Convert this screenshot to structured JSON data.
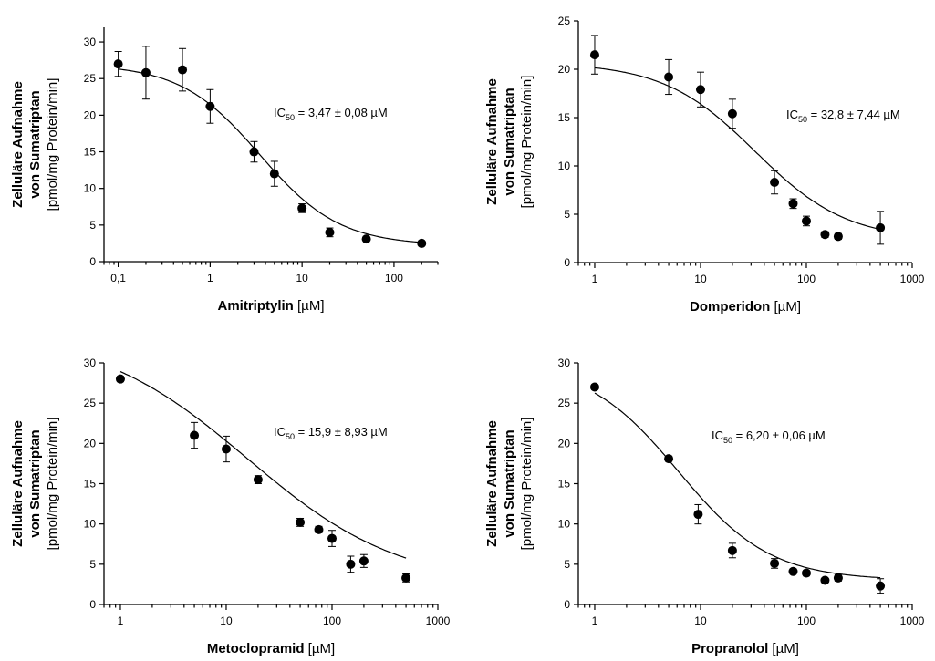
{
  "chart_data": [
    {
      "type": "scatter",
      "xscale": "log",
      "xlim": [
        0.07,
        300
      ],
      "ylim": [
        0,
        32
      ],
      "xticks": [
        0.1,
        1,
        10,
        100
      ],
      "xtick_labels": [
        "0,1",
        "1",
        "10",
        "100"
      ],
      "yticks": [
        0,
        5,
        10,
        15,
        20,
        25,
        30
      ],
      "ytick_labels": [
        "0",
        "5",
        "10",
        "15",
        "20",
        "25",
        "30"
      ],
      "xlabel_bold": "Amitriptylin",
      "xlabel_unit": " [µM]",
      "ylabel_lines": [
        "Zelluläre Aufnahme",
        "von Sumatriptan",
        "[pmol/mg Protein/min]"
      ],
      "annotation": {
        "prefix": "IC",
        "sub": "50",
        "text": " = 3,47 ± 0,08 µM"
      },
      "fit": {
        "top": 27.0,
        "bottom": 2.2,
        "ic50": 3.47
      },
      "points": [
        {
          "x": 0.1,
          "y": 27.0,
          "err": 1.7
        },
        {
          "x": 0.2,
          "y": 25.8,
          "err": 3.6
        },
        {
          "x": 0.5,
          "y": 26.2,
          "err": 2.9
        },
        {
          "x": 1,
          "y": 21.2,
          "err": 2.3
        },
        {
          "x": 3,
          "y": 15.0,
          "err": 1.4
        },
        {
          "x": 5,
          "y": 12.0,
          "err": 1.7
        },
        {
          "x": 10,
          "y": 7.3,
          "err": 0.6
        },
        {
          "x": 20,
          "y": 4.0,
          "err": 0.6
        },
        {
          "x": 50,
          "y": 3.1,
          "err": 0.2
        },
        {
          "x": 200,
          "y": 2.5,
          "err": 0.2
        }
      ]
    },
    {
      "type": "scatter",
      "xscale": "log",
      "xlim": [
        0.7,
        1000
      ],
      "ylim": [
        0,
        25
      ],
      "xticks": [
        1,
        10,
        100,
        1000
      ],
      "xtick_labels": [
        "1",
        "10",
        "100",
        "1000"
      ],
      "yticks": [
        0,
        5,
        10,
        15,
        20,
        25
      ],
      "ytick_labels": [
        "0",
        "5",
        "10",
        "15",
        "20",
        "25"
      ],
      "xlabel_bold": "Domperidon",
      "xlabel_unit": " [µM]",
      "ylabel_lines": [
        "Zelluläre Aufnahme",
        "von Sumatriptan",
        "[pmol/mg Protein/min]"
      ],
      "annotation": {
        "prefix": "IC",
        "sub": "50",
        "text": " = 32,8 ± 7,44 µM"
      },
      "fit": {
        "top": 20.7,
        "bottom": 2.3,
        "ic50": 32.8
      },
      "points": [
        {
          "x": 1,
          "y": 21.5,
          "err": 2.0
        },
        {
          "x": 5,
          "y": 19.2,
          "err": 1.8
        },
        {
          "x": 10,
          "y": 17.9,
          "err": 1.8
        },
        {
          "x": 20,
          "y": 15.4,
          "err": 1.5
        },
        {
          "x": 50,
          "y": 8.3,
          "err": 1.2
        },
        {
          "x": 75,
          "y": 6.1,
          "err": 0.5
        },
        {
          "x": 100,
          "y": 4.3,
          "err": 0.5
        },
        {
          "x": 150,
          "y": 2.9,
          "err": 0.3
        },
        {
          "x": 200,
          "y": 2.7,
          "err": 0.3
        },
        {
          "x": 500,
          "y": 3.6,
          "err": 1.7
        }
      ]
    },
    {
      "type": "scatter",
      "xscale": "log",
      "xlim": [
        0.7,
        1000
      ],
      "ylim": [
        0,
        30
      ],
      "xticks": [
        1,
        10,
        100,
        1000
      ],
      "xtick_labels": [
        "1",
        "10",
        "100",
        "1000"
      ],
      "yticks": [
        0,
        5,
        10,
        15,
        20,
        25,
        30
      ],
      "ytick_labels": [
        "0",
        "5",
        "10",
        "15",
        "20",
        "25",
        "30"
      ],
      "xlabel_bold": "Metoclopramid",
      "xlabel_unit": " [µM]",
      "ylabel_lines": [
        "Zelluläre Aufnahme",
        "von Sumatriptan",
        "[pmol/mg Protein/min]"
      ],
      "annotation": {
        "prefix": "IC",
        "sub": "50",
        "text": " = 15,9 ± 8,93 µM"
      },
      "fit": {
        "top": 34.0,
        "bottom": 2.2,
        "ic50": 15.9,
        "slope": 0.6
      },
      "points": [
        {
          "x": 1,
          "y": 28.0,
          "err": 0.3
        },
        {
          "x": 5,
          "y": 21.0,
          "err": 1.6
        },
        {
          "x": 10,
          "y": 19.3,
          "err": 1.6
        },
        {
          "x": 20,
          "y": 15.5,
          "err": 0.5
        },
        {
          "x": 50,
          "y": 10.2,
          "err": 0.5
        },
        {
          "x": 75,
          "y": 9.3,
          "err": 0.4
        },
        {
          "x": 100,
          "y": 8.2,
          "err": 1.0
        },
        {
          "x": 150,
          "y": 5.0,
          "err": 1.0
        },
        {
          "x": 200,
          "y": 5.4,
          "err": 0.8
        },
        {
          "x": 500,
          "y": 3.3,
          "err": 0.5
        }
      ]
    },
    {
      "type": "scatter",
      "xscale": "log",
      "xlim": [
        0.7,
        1000
      ],
      "ylim": [
        0,
        30
      ],
      "xticks": [
        1,
        10,
        100,
        1000
      ],
      "xtick_labels": [
        "1",
        "10",
        "100",
        "1000"
      ],
      "yticks": [
        0,
        5,
        10,
        15,
        20,
        25,
        30
      ],
      "ytick_labels": [
        "0",
        "5",
        "10",
        "15",
        "20",
        "25",
        "30"
      ],
      "xlabel_bold": "Propranolol",
      "xlabel_unit": " [µM]",
      "ylabel_lines": [
        "Zelluläre Aufnahme",
        "von Sumatriptan",
        "[pmol/mg Protein/min]"
      ],
      "annotation": {
        "prefix": "IC",
        "sub": "50",
        "text": " = 6,20 ± 0,06 µM"
      },
      "fit": {
        "top": 30.0,
        "bottom": 3.0,
        "ic50": 6.2
      },
      "points": [
        {
          "x": 1,
          "y": 27.0,
          "err": 0.3
        },
        {
          "x": 5,
          "y": 18.1,
          "err": 0.3
        },
        {
          "x": 9.5,
          "y": 11.2,
          "err": 1.2
        },
        {
          "x": 20,
          "y": 6.7,
          "err": 0.9
        },
        {
          "x": 50,
          "y": 5.1,
          "err": 0.6
        },
        {
          "x": 75,
          "y": 4.1,
          "err": 0.3
        },
        {
          "x": 100,
          "y": 3.9,
          "err": 0.3
        },
        {
          "x": 150,
          "y": 3.0,
          "err": 0.2
        },
        {
          "x": 200,
          "y": 3.3,
          "err": 0.4
        },
        {
          "x": 500,
          "y": 2.3,
          "err": 0.9
        }
      ]
    }
  ]
}
